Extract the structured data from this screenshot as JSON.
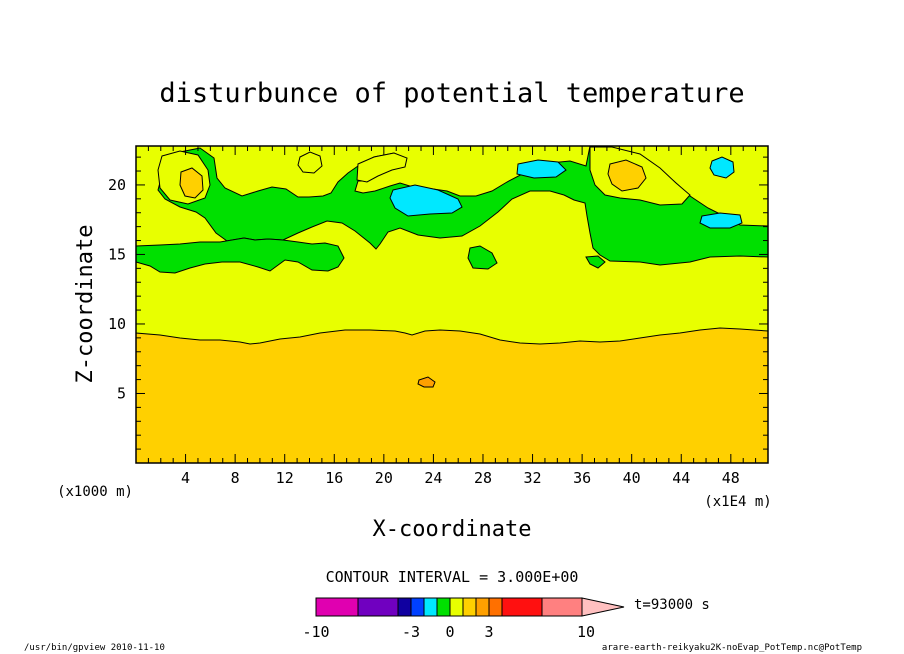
{
  "chart_data": {
    "type": "heatmap",
    "title": "disturbunce of potential temperature",
    "xlabel": "X-coordinate",
    "ylabel": "Z-coordinate",
    "x_unit_left": "(x1000 m)",
    "x_unit_right": "(x1E4 m)",
    "xlim": [
      0,
      51
    ],
    "ylim": [
      0,
      22.8
    ],
    "x_ticks": [
      4,
      8,
      12,
      16,
      20,
      24,
      28,
      32,
      36,
      40,
      44,
      48
    ],
    "y_ticks": [
      5,
      10,
      15,
      20
    ],
    "contour_interval_label": "CONTOUR INTERVAL = 3.000E+00",
    "time_label": "t=93000 s",
    "colorbar": {
      "tick_labels": [
        "-10",
        "-3",
        "0",
        "3",
        "10"
      ],
      "levels": [
        {
          "color": "#e000b0"
        },
        {
          "color": "#7000c0"
        },
        {
          "color": "#1000a0"
        },
        {
          "color": "#0040ff"
        },
        {
          "color": "#00e8ff"
        },
        {
          "color": "#00e000"
        },
        {
          "color": "#e8ff00"
        },
        {
          "color": "#ffd000"
        },
        {
          "color": "#ffa000"
        },
        {
          "color": "#ff7000"
        },
        {
          "color": "#ff1010"
        },
        {
          "color": "#ff8080"
        },
        {
          "color": "#ffc0c0"
        }
      ]
    },
    "regions": [
      {
        "level": "0 to 3",
        "color": "#00e000",
        "description": "upper layer z > ~14"
      },
      {
        "level": "3 to 6",
        "color": "#e8ff00",
        "description": "middle layer ~9.5 < z < ~15"
      },
      {
        "level": "6 to 9",
        "color": "#ffd000",
        "description": "lower layer z < ~9.5"
      },
      {
        "level": "-3 to 0",
        "color": "#00e8ff",
        "description": "small cold patches aloft near x=21, 33, 47"
      },
      {
        "level": "9 to 12",
        "color": "#ffa000",
        "description": "small warm patch near x=23.5, z=6"
      }
    ]
  },
  "footer": {
    "left": "/usr/bin/gpview  2010-11-10",
    "right": "arare-earth-reikyaku2K-noEvap_PotTemp.nc@PotTemp"
  }
}
